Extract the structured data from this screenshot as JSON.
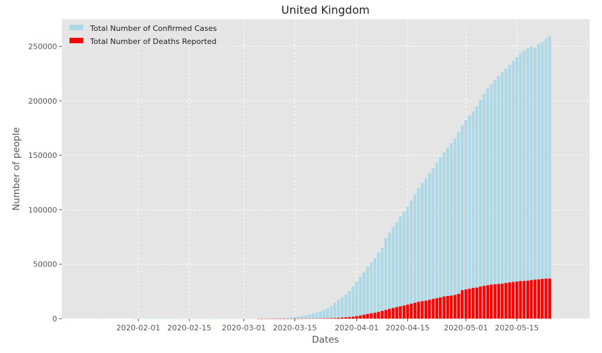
{
  "chart_data": {
    "type": "bar",
    "title": "United Kingdom",
    "xlabel": "Dates",
    "ylabel": "Number of people",
    "ylim": [
      0,
      275000
    ],
    "grid": true,
    "legend_position": "top-left",
    "x_ticks": [
      "2020-02-01",
      "2020-02-15",
      "2020-03-01",
      "2020-03-15",
      "2020-04-01",
      "2020-04-15",
      "2020-05-01",
      "2020-05-15"
    ],
    "y_ticks": [
      0,
      50000,
      100000,
      150000,
      200000,
      250000
    ],
    "dates": [
      "2020-01-22",
      "2020-01-23",
      "2020-01-24",
      "2020-01-25",
      "2020-01-26",
      "2020-01-27",
      "2020-01-28",
      "2020-01-29",
      "2020-01-30",
      "2020-01-31",
      "2020-02-01",
      "2020-02-02",
      "2020-02-03",
      "2020-02-04",
      "2020-02-05",
      "2020-02-06",
      "2020-02-07",
      "2020-02-08",
      "2020-02-09",
      "2020-02-10",
      "2020-02-11",
      "2020-02-12",
      "2020-02-13",
      "2020-02-14",
      "2020-02-15",
      "2020-02-16",
      "2020-02-17",
      "2020-02-18",
      "2020-02-19",
      "2020-02-20",
      "2020-02-21",
      "2020-02-22",
      "2020-02-23",
      "2020-02-24",
      "2020-02-25",
      "2020-02-26",
      "2020-02-27",
      "2020-02-28",
      "2020-02-29",
      "2020-03-01",
      "2020-03-02",
      "2020-03-03",
      "2020-03-04",
      "2020-03-05",
      "2020-03-06",
      "2020-03-07",
      "2020-03-08",
      "2020-03-09",
      "2020-03-10",
      "2020-03-11",
      "2020-03-12",
      "2020-03-13",
      "2020-03-14",
      "2020-03-15",
      "2020-03-16",
      "2020-03-17",
      "2020-03-18",
      "2020-03-19",
      "2020-03-20",
      "2020-03-21",
      "2020-03-22",
      "2020-03-23",
      "2020-03-24",
      "2020-03-25",
      "2020-03-26",
      "2020-03-27",
      "2020-03-28",
      "2020-03-29",
      "2020-03-30",
      "2020-03-31",
      "2020-04-01",
      "2020-04-02",
      "2020-04-03",
      "2020-04-04",
      "2020-04-05",
      "2020-04-06",
      "2020-04-07",
      "2020-04-08",
      "2020-04-09",
      "2020-04-10",
      "2020-04-11",
      "2020-04-12",
      "2020-04-13",
      "2020-04-14",
      "2020-04-15",
      "2020-04-16",
      "2020-04-17",
      "2020-04-18",
      "2020-04-19",
      "2020-04-20",
      "2020-04-21",
      "2020-04-22",
      "2020-04-23",
      "2020-04-24",
      "2020-04-25",
      "2020-04-26",
      "2020-04-27",
      "2020-04-28",
      "2020-04-29",
      "2020-04-30",
      "2020-05-01",
      "2020-05-02",
      "2020-05-03",
      "2020-05-04",
      "2020-05-05",
      "2020-05-06",
      "2020-05-07",
      "2020-05-08",
      "2020-05-09",
      "2020-05-10",
      "2020-05-11",
      "2020-05-12",
      "2020-05-13",
      "2020-05-14",
      "2020-05-15",
      "2020-05-16",
      "2020-05-17",
      "2020-05-18",
      "2020-05-19",
      "2020-05-20",
      "2020-05-21",
      "2020-05-22",
      "2020-05-23",
      "2020-05-24"
    ],
    "series": [
      {
        "name": "Total Number of Confirmed Cases",
        "color": "#add8e6",
        "values": [
          0,
          0,
          0,
          0,
          0,
          0,
          0,
          0,
          0,
          2,
          2,
          2,
          2,
          2,
          2,
          2,
          3,
          3,
          3,
          8,
          8,
          9,
          9,
          9,
          9,
          9,
          9,
          9,
          9,
          9,
          9,
          9,
          9,
          13,
          13,
          13,
          15,
          20,
          23,
          36,
          40,
          51,
          86,
          116,
          164,
          209,
          278,
          321,
          383,
          460,
          594,
          798,
          1140,
          1543,
          1950,
          2626,
          2689,
          3983,
          5018,
          5683,
          6650,
          8077,
          9529,
          11658,
          14543,
          17312,
          19780,
          22453,
          25481,
          29865,
          34173,
          38689,
          42477,
          47806,
          51608,
          55242,
          60733,
          65077,
          73758,
          78991,
          84279,
          88621,
          93873,
          98476,
          103093,
          108692,
          114217,
          120067,
          124743,
          129044,
          133495,
          138078,
          143464,
          148377,
          152840,
          157149,
          161145,
          165221,
          171253,
          177454,
          182260,
          186599,
          190584,
          194990,
          201101,
          206715,
          211364,
          215260,
          219183,
          223060,
          226463,
          229705,
          233151,
          236711,
          240161,
          243695,
          246406,
          248293,
          250138,
          248818,
          252245,
          254195,
          257154,
          259559
        ]
      },
      {
        "name": "Total Number of Deaths Reported",
        "color": "#ff0000",
        "values": [
          0,
          0,
          0,
          0,
          0,
          0,
          0,
          0,
          0,
          0,
          0,
          0,
          0,
          0,
          0,
          0,
          0,
          0,
          0,
          0,
          0,
          0,
          0,
          0,
          0,
          0,
          0,
          0,
          0,
          0,
          0,
          0,
          0,
          0,
          0,
          0,
          0,
          0,
          0,
          0,
          0,
          0,
          0,
          1,
          2,
          2,
          3,
          4,
          6,
          8,
          8,
          8,
          21,
          21,
          56,
          56,
          72,
          138,
          178,
          234,
          282,
          336,
          423,
          466,
          580,
          761,
          1021,
          1231,
          1411,
          1793,
          2357,
          2926,
          3611,
          4320,
          4943,
          5385,
          6171,
          7111,
          7993,
          8974,
          9892,
          10629,
          11347,
          12129,
          12894,
          13759,
          14607,
          15498,
          16095,
          16550,
          17378,
          18151,
          18791,
          19567,
          20381,
          20794,
          21157,
          21787,
          22792,
          26166,
          26842,
          27510,
          28205,
          28520,
          29501,
          30150,
          30689,
          31316,
          31662,
          31930,
          32141,
          32769,
          33264,
          33692,
          34078,
          34546,
          34716,
          34876,
          35422,
          35786,
          36124,
          36475,
          36793,
          36914
        ]
      }
    ]
  }
}
